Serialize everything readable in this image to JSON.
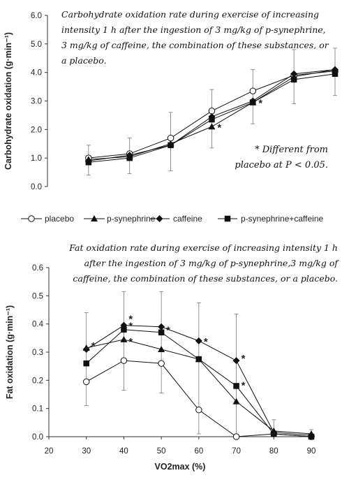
{
  "charts": [
    {
      "type": "line",
      "title": "Carbohydrate oxidation rate during exercise of increasing intensity 1 h after the ingestion of 3 mg/kg of p-synephrine, 3 mg/kg of caffeine, the combination of these substances, or a placebo.",
      "ylabel": "Carbohydrate oxidation (g·min⁻¹)",
      "ylim": [
        0,
        6
      ],
      "yticks": [
        "0.0",
        "1.0",
        "2.0",
        "3.0",
        "4.0",
        "5.0",
        "6.0"
      ],
      "x": [
        30,
        40,
        50,
        60,
        70,
        80,
        90
      ],
      "series": [
        {
          "name": "placebo",
          "values": [
            1.0,
            1.15,
            1.7,
            2.65,
            3.35,
            3.9,
            4.05
          ]
        },
        {
          "name": "p-synephrine",
          "values": [
            0.95,
            1.05,
            1.5,
            2.1,
            2.95,
            3.85,
            4.1
          ]
        },
        {
          "name": "caffeine",
          "values": [
            0.9,
            1.1,
            1.45,
            2.45,
            3.0,
            3.95,
            4.1
          ]
        },
        {
          "name": "p-synephrine+caffeine",
          "values": [
            0.85,
            1.0,
            1.45,
            2.35,
            2.95,
            3.75,
            3.95
          ]
        }
      ],
      "annotations": [
        "*",
        "*"
      ],
      "footnote_line1": "* Different from",
      "footnote_line2": "placebo at P < 0.05."
    },
    {
      "type": "line",
      "title": "Fat oxidation rate during exercise of increasing intensity 1 h after the ingestion of 3 mg/kg of p-synephrine,3 mg/kg of caffeine, the combination of these substances, or a placebo.",
      "ylabel": "Fat oxidation (g·min⁻¹)",
      "xlabel": "VO2max (%)",
      "ylim": [
        0,
        0.6
      ],
      "yticks": [
        "0.0",
        "0.1",
        "0.2",
        "0.3",
        "0.4",
        "0.5",
        "0.6"
      ],
      "xlim": [
        20,
        90
      ],
      "xticks": [
        "20",
        "30",
        "40",
        "50",
        "60",
        "70",
        "80",
        "90"
      ],
      "x": [
        30,
        40,
        50,
        60,
        70,
        80,
        90
      ],
      "series": [
        {
          "name": "placebo",
          "values": [
            0.195,
            0.27,
            0.26,
            0.095,
            0.0,
            0.01,
            0.0
          ]
        },
        {
          "name": "p-synephrine",
          "values": [
            0.315,
            0.345,
            0.31,
            0.275,
            0.125,
            0.02,
            0.01
          ]
        },
        {
          "name": "caffeine",
          "values": [
            0.31,
            0.395,
            0.39,
            0.34,
            0.27,
            0.015,
            0.005
          ]
        },
        {
          "name": "p-synephrine+caffeine",
          "values": [
            0.26,
            0.38,
            0.37,
            0.275,
            0.18,
            0.01,
            0.0
          ]
        }
      ],
      "annotations": [
        "*",
        "*",
        "*",
        "*",
        "*",
        "*",
        "*",
        "*"
      ]
    }
  ],
  "legend": {
    "placement": "between-charts",
    "items": [
      {
        "label": "placebo",
        "marker": "open-circle"
      },
      {
        "label": "p-synephrine",
        "marker": "triangle"
      },
      {
        "label": "caffeine",
        "marker": "diamond"
      },
      {
        "label": "p-synephrine+caffeine",
        "marker": "square"
      }
    ]
  }
}
